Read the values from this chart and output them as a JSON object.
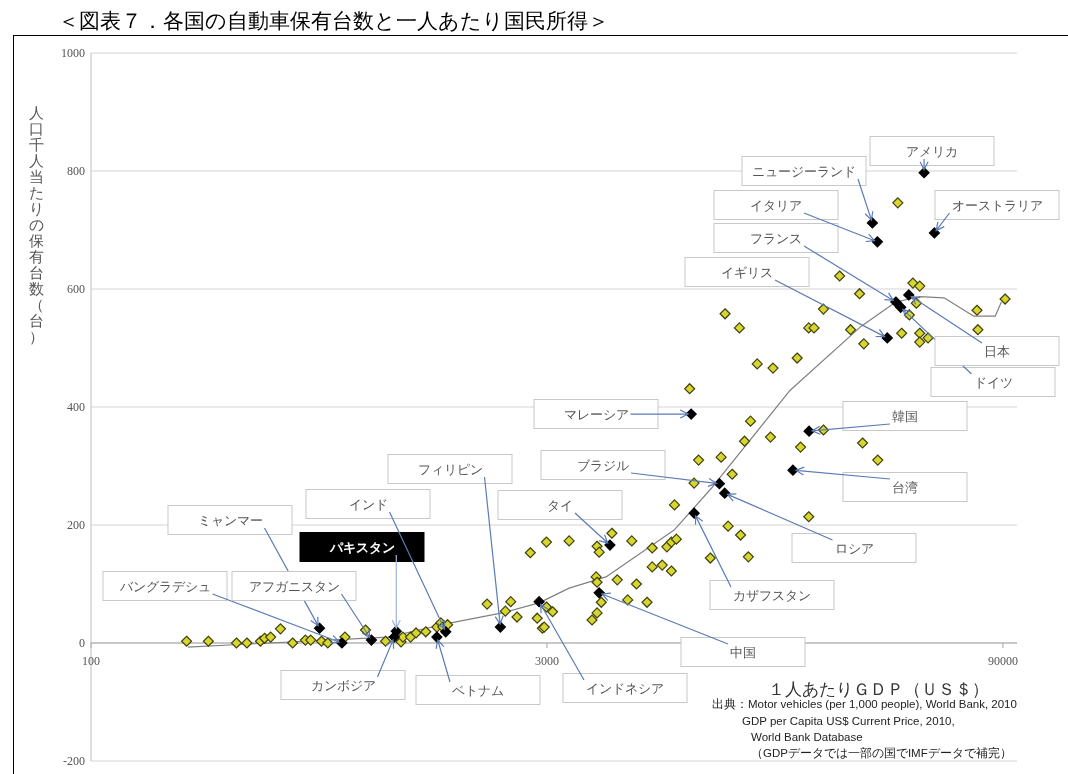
{
  "chart_data": {
    "type": "scatter",
    "title": "＜図表７．各国の自動車保有台数と一人あたり国民所得＞",
    "xlabel": "１人あたりＧＤＰ（ＵＳ＄）",
    "ylabel": "人口千人当たりの保有台数（台）",
    "log": "x",
    "xlim": [
      100,
      100000
    ],
    "xticks": [
      100,
      3000,
      90000
    ],
    "ylim": [
      -200,
      1000
    ],
    "yticks": [
      -200,
      0,
      200,
      400,
      600,
      800,
      1000
    ],
    "grid": "y",
    "marker": "diamond",
    "series": [
      {
        "type": "line",
        "color": "#808080",
        "marker": "none",
        "x": [
          206,
          290,
          920,
          1370,
          2150,
          2830,
          3540,
          4660,
          7770,
          10300,
          18300,
          31300,
          40500,
          48400,
          58000,
          72500,
          85000,
          89000
        ],
        "values": [
          -7,
          -3,
          10,
          31,
          51,
          68,
          93,
          112,
          192,
          264,
          427,
          537,
          578,
          587,
          585,
          554,
          554,
          578
        ]
      },
      {
        "color": "#d6d62e",
        "x": [
          204,
          240,
          296,
          320,
          354,
          365,
          382,
          411,
          450,
          495,
          515,
          558,
          585,
          665,
          775,
          900,
          1010,
          1025,
          1085,
          1130,
          1215,
          1320,
          1360,
          1380,
          1430,
          1920,
          2200,
          2290,
          2400,
          2650,
          2990,
          2790,
          2900,
          2990,
          3130,
          3540,
          4870,
          5650,
          4360,
          4430,
          4330,
          4360,
          5070,
          5850,
          4500,
          5480,
          6330,
          4360,
          4200,
          6580,
          7340,
          7590,
          7880,
          6580,
          7090,
          7590,
          7770,
          8990,
          11590,
          12720,
          10150,
          13480,
          21150,
          2940,
          41100,
          26630,
          46000,
          48400,
          30900,
          23600,
          11330,
          12610,
          21150,
          22000,
          28900,
          44800,
          47200,
          42300,
          48400,
          51500,
          48400,
          31900,
          74200,
          91500,
          74700,
          14400,
          16200,
          19400,
          8700,
          13700,
          23600,
          13100,
          15900,
          19900,
          31600,
          35400,
          9300,
          11000,
          11950
        ],
        "values": [
          3,
          3,
          0,
          0,
          3,
          8,
          10,
          24,
          0,
          5,
          5,
          3,
          0,
          10,
          22,
          3,
          2,
          10,
          10,
          17,
          19,
          27,
          34,
          27,
          31,
          66,
          54,
          70,
          44,
          153,
          171,
          42,
          25,
          61,
          53,
          173,
          186,
          173,
          164,
          154,
          112,
          103,
          107,
          100,
          69,
          73,
          69,
          51,
          39,
          161,
          163,
          171,
          176,
          129,
          132,
          122,
          234,
          271,
          198,
          183,
          144,
          146,
          214,
          27,
          746,
          622,
          610,
          605,
          592,
          566,
          558,
          534,
          534,
          534,
          531,
          556,
          576,
          525,
          525,
          517,
          510,
          507,
          564,
          583,
          531,
          473,
          466,
          483,
          431,
          376,
          361,
          342,
          349,
          332,
          339,
          310,
          310,
          315,
          286
        ]
      },
      {
        "color": "#000000",
        "x": [
          650,
          550,
          975,
          810,
          1410,
          960,
          1320,
          2120,
          2830,
          4800,
          4430,
          10860,
          9000,
          11300,
          8800,
          21200,
          18800,
          38000,
          40500,
          42000,
          44600,
          35300,
          34000,
          54000,
          50000
        ],
        "values": [
          0,
          25,
          20,
          5,
          19,
          10,
          10,
          27,
          70,
          166,
          85,
          270,
          220,
          254,
          388,
          359,
          293,
          517,
          578,
          569,
          590,
          680,
          712,
          695,
          797
        ]
      }
    ],
    "annotations": [
      {
        "text": "バングラデシュ",
        "x": 650,
        "y": 0
      },
      {
        "text": "ミャンマー",
        "x": 550,
        "y": 25
      },
      {
        "text": "パキスタン",
        "x": 975,
        "y": 20
      },
      {
        "text": "アフガニスタン",
        "x": 810,
        "y": 5
      },
      {
        "text": "インド",
        "x": 1410,
        "y": 19
      },
      {
        "text": "カンボジア",
        "x": 960,
        "y": 10
      },
      {
        "text": "ベトナム",
        "x": 1320,
        "y": 10
      },
      {
        "text": "フィリピン",
        "x": 2120,
        "y": 27
      },
      {
        "text": "インドネシア",
        "x": 2830,
        "y": 70
      },
      {
        "text": "タイ",
        "x": 4800,
        "y": 166
      },
      {
        "text": "中国",
        "x": 4430,
        "y": 85
      },
      {
        "text": "ブラジル",
        "x": 10860,
        "y": 270
      },
      {
        "text": "カザフスタン",
        "x": 9000,
        "y": 220
      },
      {
        "text": "ロシア",
        "x": 11300,
        "y": 254
      },
      {
        "text": "マレーシア",
        "x": 8800,
        "y": 388
      },
      {
        "text": "韓国",
        "x": 21200,
        "y": 359
      },
      {
        "text": "台湾",
        "x": 18800,
        "y": 293
      },
      {
        "text": "イギリス",
        "x": 38000,
        "y": 517
      },
      {
        "text": "フランス",
        "x": 40500,
        "y": 578
      },
      {
        "text": "ドイツ",
        "x": 42000,
        "y": 569
      },
      {
        "text": "日本",
        "x": 44600,
        "y": 590
      },
      {
        "text": "イタリア",
        "x": 35300,
        "y": 680
      },
      {
        "text": "ニュージーランド",
        "x": 34000,
        "y": 712
      },
      {
        "text": "オーストラリア",
        "x": 54000,
        "y": 695
      },
      {
        "text": "アメリカ",
        "x": 50000,
        "y": 797
      },
      "出典：Motor vehicles (per 1,000 people), World Bank, 2010",
      "GDP per Capita US$ Current Price, 2010,",
      "World Bank Database",
      "（GDPデータでは一部の国でIMFデータで補完）"
    ]
  }
}
